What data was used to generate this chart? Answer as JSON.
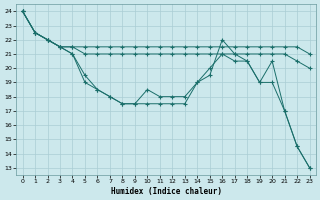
{
  "xlabel": "Humidex (Indice chaleur)",
  "bg_color": "#cce8ec",
  "grid_color": "#aacdd4",
  "line_color": "#1a6e6a",
  "xlim": [
    -0.5,
    23.5
  ],
  "ylim": [
    12.5,
    24.5
  ],
  "xticks": [
    0,
    1,
    2,
    3,
    4,
    5,
    6,
    7,
    8,
    9,
    10,
    11,
    12,
    13,
    14,
    15,
    16,
    17,
    18,
    19,
    20,
    21,
    22,
    23
  ],
  "yticks": [
    13,
    14,
    15,
    16,
    17,
    18,
    19,
    20,
    21,
    22,
    23,
    24
  ],
  "lines": [
    {
      "x": [
        0,
        1,
        2,
        3,
        4,
        5,
        6,
        7,
        8,
        9,
        10,
        11,
        12,
        13,
        14,
        15,
        16,
        17,
        18,
        19,
        20,
        21,
        22,
        23
      ],
      "y": [
        24,
        22.5,
        22,
        21.5,
        21.5,
        21.5,
        21.5,
        21.5,
        21.5,
        21.5,
        21.5,
        21.5,
        21.5,
        21.5,
        21.5,
        21.5,
        21.5,
        21.5,
        21.5,
        21.5,
        21.5,
        21.5,
        21.5,
        21.0
      ]
    },
    {
      "x": [
        0,
        1,
        2,
        3,
        4,
        5,
        6,
        7,
        8,
        9,
        10,
        11,
        12,
        13,
        14,
        15,
        16,
        17,
        18,
        19,
        20,
        21,
        22,
        23
      ],
      "y": [
        24,
        22.5,
        22,
        21.5,
        21.5,
        21,
        21,
        21,
        21,
        21,
        21,
        21,
        21,
        21,
        21,
        21,
        21,
        21,
        21,
        21,
        21,
        21,
        20.5,
        20.0
      ]
    },
    {
      "x": [
        0,
        1,
        2,
        3,
        4,
        5,
        6,
        7,
        8,
        9,
        10,
        11,
        12,
        13,
        14,
        15,
        16,
        17,
        18,
        19,
        20,
        21,
        22,
        23
      ],
      "y": [
        24,
        22.5,
        22,
        21.5,
        21,
        19.5,
        18.5,
        18,
        17.5,
        17.5,
        18.5,
        18,
        18,
        18,
        19,
        19.5,
        22,
        21,
        20.5,
        19,
        19,
        17,
        14.5,
        13
      ]
    },
    {
      "x": [
        0,
        1,
        2,
        3,
        4,
        5,
        6,
        7,
        8,
        9,
        10,
        11,
        12,
        13,
        14,
        15,
        16,
        17,
        18,
        19,
        20,
        21,
        22,
        23
      ],
      "y": [
        24,
        22.5,
        22,
        21.5,
        21,
        19,
        18.5,
        18,
        17.5,
        17.5,
        17.5,
        17.5,
        17.5,
        17.5,
        19,
        20,
        21,
        20.5,
        20.5,
        19,
        20.5,
        17,
        14.5,
        13
      ]
    }
  ]
}
